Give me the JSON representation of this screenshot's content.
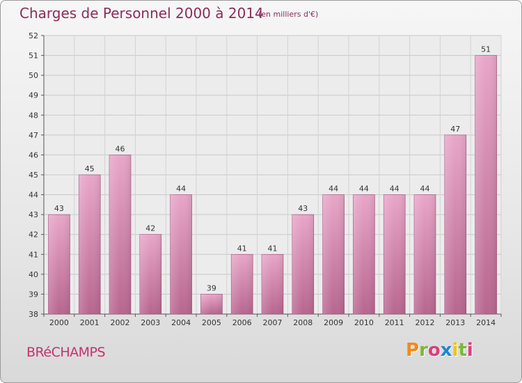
{
  "header": {
    "title": "Charges de Personnel 2000 à 2014",
    "subtitle": "(en milliers d'€)"
  },
  "footer": {
    "place": "BRéCHAMPS",
    "logo": "Proxiti",
    "logo_colors": [
      "#f08a1c",
      "#7ab83a",
      "#e03c7a",
      "#1e88d0",
      "#f0c020",
      "#7ab83a",
      "#e03c7a"
    ]
  },
  "chart_data": {
    "type": "bar",
    "title": "Charges de Personnel 2000 à 2014",
    "subtitle": "(en milliers d'€)",
    "categories": [
      "2000",
      "2001",
      "2002",
      "2003",
      "2004",
      "2005",
      "2006",
      "2007",
      "2008",
      "2009",
      "2010",
      "2011",
      "2012",
      "2013",
      "2014"
    ],
    "values": [
      43,
      45,
      46,
      42,
      44,
      39,
      41,
      41,
      43,
      44,
      44,
      44,
      44,
      47,
      51
    ],
    "ylim": [
      38,
      52
    ],
    "yticks": [
      "38",
      "39",
      "40",
      "41",
      "42",
      "43",
      "44",
      "45",
      "46",
      "47",
      "48",
      "49",
      "50",
      "51",
      "52"
    ],
    "grid": true,
    "bar_color_top": "#e8a6c8",
    "bar_color_bottom": "#b8668f"
  }
}
